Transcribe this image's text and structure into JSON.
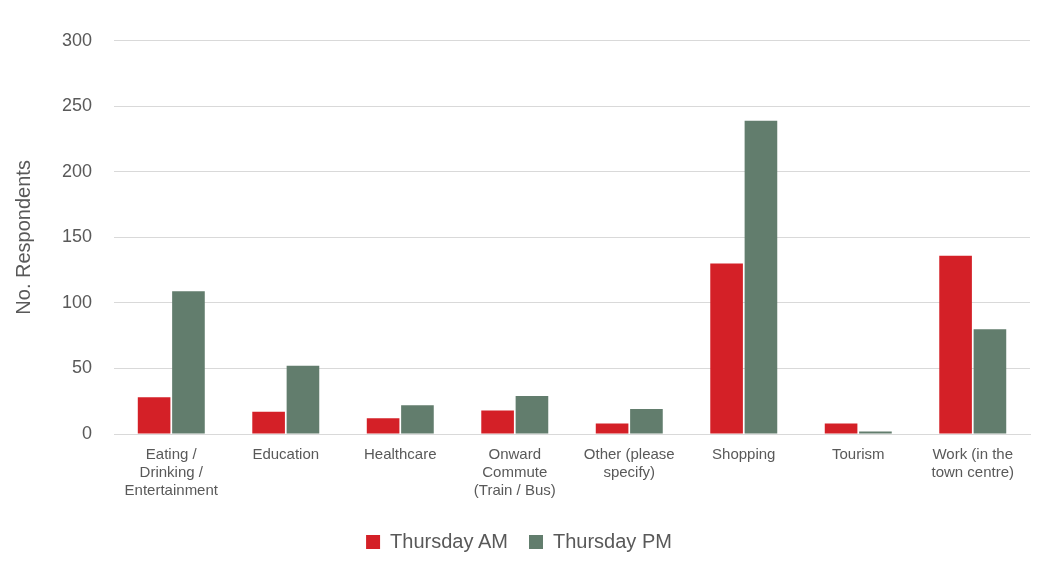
{
  "chart_data": {
    "type": "bar",
    "ylabel": "No. Respondents",
    "categories": [
      "Eating / Drinking / Entertainment",
      "Education",
      "Healthcare",
      "Onward Commute (Train / Bus)",
      "Other (please specify)",
      "Shopping",
      "Tourism",
      "Work (in the town centre)"
    ],
    "series": [
      {
        "name": "Thursday AM",
        "color": "#d42027",
        "values": [
          28,
          17,
          12,
          18,
          8,
          130,
          8,
          136
        ]
      },
      {
        "name": "Thursday PM",
        "color": "#627d6d",
        "values": [
          109,
          52,
          22,
          29,
          19,
          239,
          2,
          80
        ]
      }
    ],
    "ylim": [
      0,
      300
    ],
    "yticks": [
      0,
      50,
      100,
      150,
      200,
      250,
      300
    ],
    "grid": "y",
    "legend": "bottom"
  }
}
